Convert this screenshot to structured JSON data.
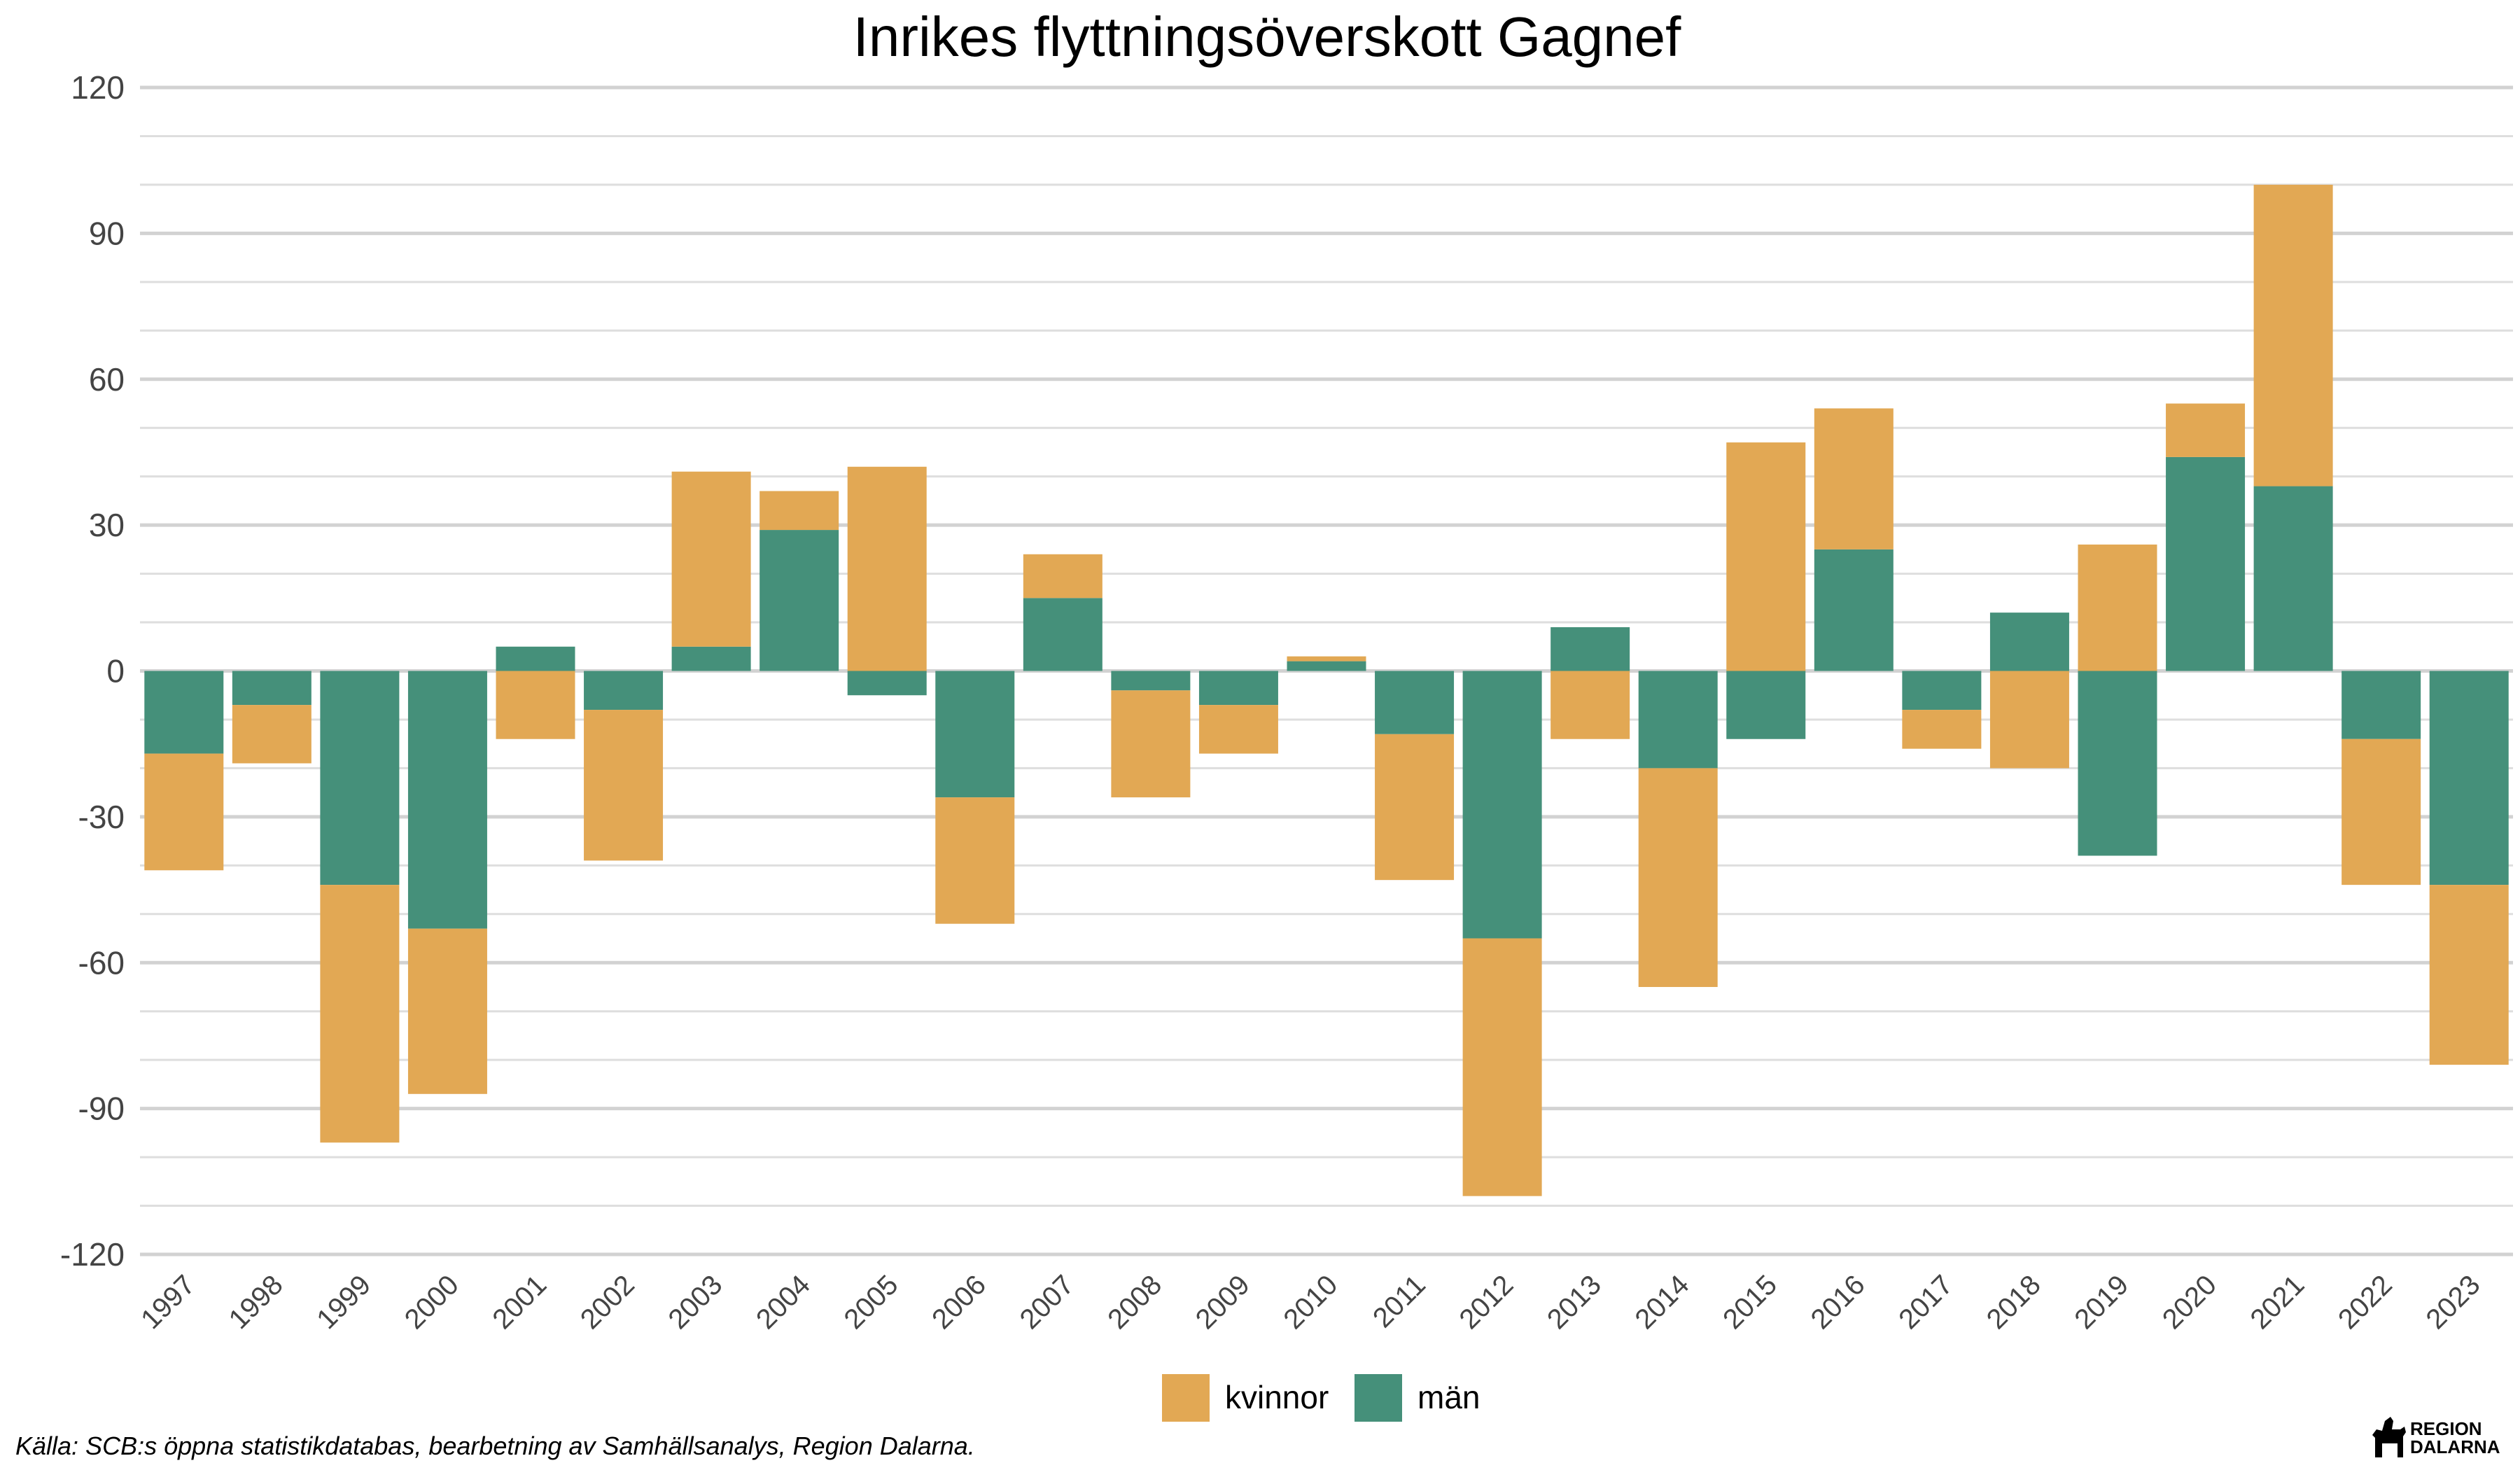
{
  "chart_data": {
    "type": "bar",
    "stacked": true,
    "title": "Inrikes flyttningsöverskott Gagnef",
    "xlabel": "",
    "ylabel": "",
    "ylim": [
      -120,
      120
    ],
    "yticks": [
      120,
      90,
      60,
      30,
      0,
      -30,
      -60,
      -90,
      -120
    ],
    "grid": true,
    "legend_position": "bottom",
    "categories": [
      "1997",
      "1998",
      "1999",
      "2000",
      "2001",
      "2002",
      "2003",
      "2004",
      "2005",
      "2006",
      "2007",
      "2008",
      "2009",
      "2010",
      "2011",
      "2012",
      "2013",
      "2014",
      "2015",
      "2016",
      "2017",
      "2018",
      "2019",
      "2020",
      "2021",
      "2022",
      "2023"
    ],
    "series": [
      {
        "name": "män",
        "color": "#45907A",
        "values": [
          -17,
          -7,
          -44,
          -53,
          5,
          -8,
          5,
          29,
          -5,
          -26,
          15,
          -4,
          -7,
          2,
          -13,
          -55,
          9,
          -20,
          -14,
          25,
          -8,
          12,
          -38,
          44,
          38,
          -14,
          -44
        ]
      },
      {
        "name": "kvinnor",
        "color": "#E2A854",
        "values": [
          -24,
          -12,
          -53,
          -34,
          -14,
          -31,
          36,
          8,
          42,
          -26,
          9,
          -22,
          -10,
          1,
          -30,
          -53,
          -14,
          -45,
          47,
          29,
          -8,
          -20,
          26,
          11,
          62,
          -30,
          -37
        ]
      }
    ],
    "legend": [
      "kvinnor",
      "män"
    ]
  },
  "source": "Källa: SCB:s öppna statistikdatabas, bearbetning av Samhällsanalys, Region Dalarna.",
  "logo": {
    "line1": "REGION",
    "line2": "DALARNA"
  }
}
